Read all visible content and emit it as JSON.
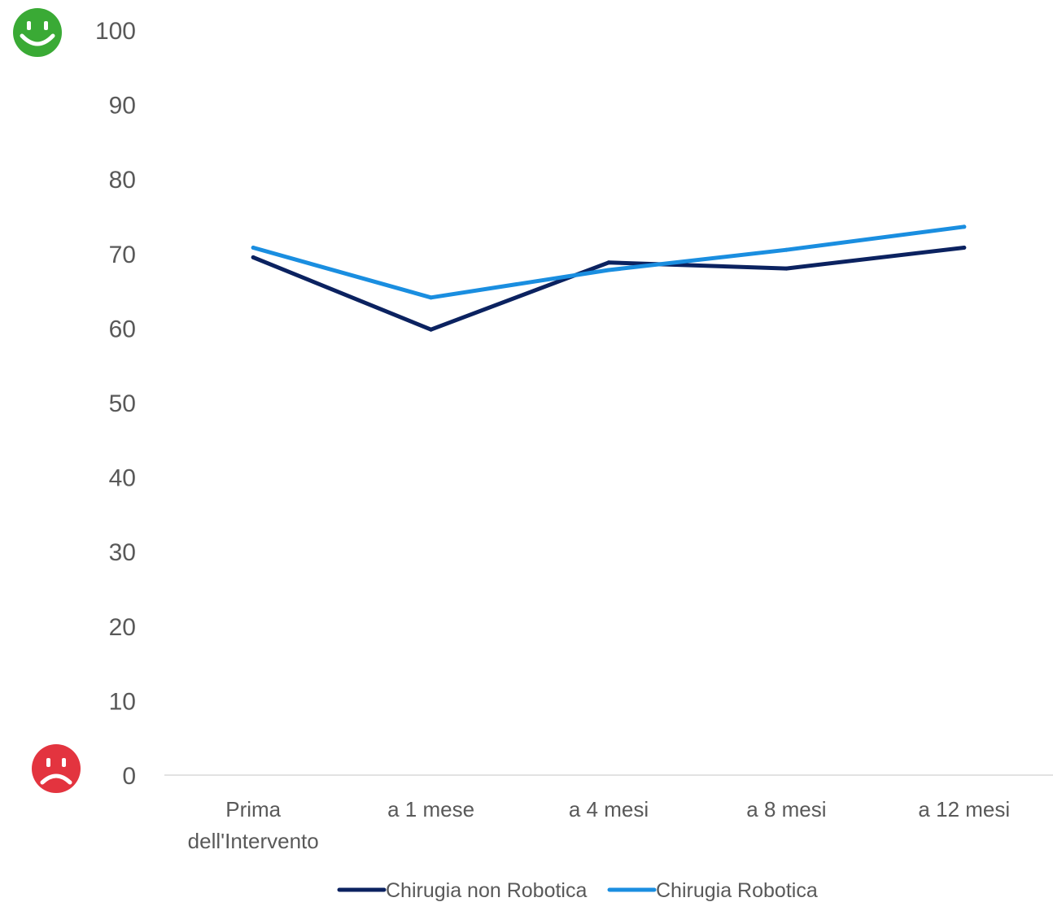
{
  "chart_data": {
    "type": "line",
    "categories": [
      [
        "Prima",
        "dell'Intervento"
      ],
      [
        "a 1 mese"
      ],
      [
        "a 4 mesi"
      ],
      [
        "a 8 mesi"
      ],
      [
        "a 12 mesi"
      ]
    ],
    "series": [
      {
        "name": "Chirugia non Robotica",
        "values": [
          69.5,
          59.8,
          68.8,
          68,
          70.8
        ],
        "color": "#0b2260"
      },
      {
        "name": "Chirugia Robotica",
        "values": [
          70.8,
          64.1,
          67.8,
          70.5,
          73.6
        ],
        "color": "#1a8ee0"
      }
    ],
    "yticks": [
      "0",
      "10",
      "20",
      "30",
      "40",
      "50",
      "60",
      "70",
      "80",
      "90",
      "100"
    ],
    "ylim": [
      0,
      100
    ],
    "grid": false,
    "legend_position": "bottom",
    "icons": {
      "top": "happy-face-icon",
      "bottom": "sad-face-icon"
    },
    "icon_colors": {
      "happy": "#3aaa35",
      "sad": "#e3343f"
    },
    "axis_color": "#d9d9d9"
  }
}
